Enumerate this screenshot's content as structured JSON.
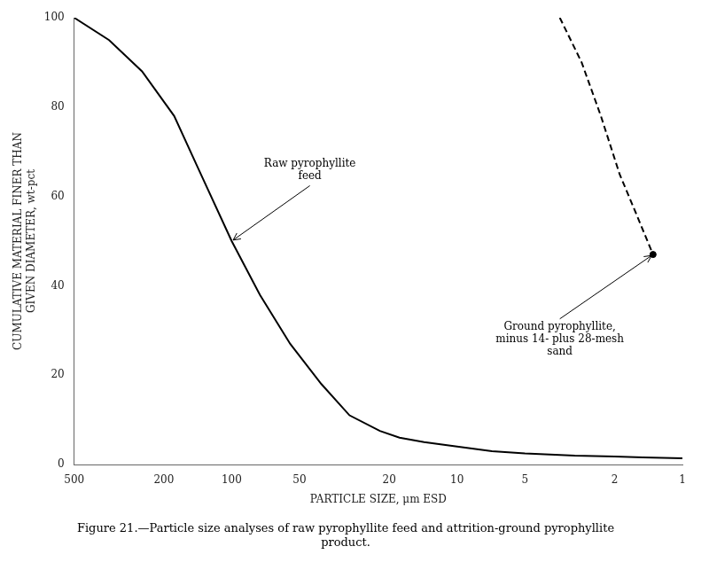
{
  "chart_data": {
    "type": "line",
    "xlabel": "PARTICLE SIZE, μm ESD",
    "ylabel": "CUMULATIVE MATERIAL FINER THAN\nGIVEN DIAMETER, wt-pct",
    "caption": "Figure 21.—Particle size analyses of raw pyrophyllite feed and attrition-ground pyrophyllite\nproduct.",
    "log": "x",
    "grid": false,
    "xlim": [
      500,
      1
    ],
    "xticks": [
      500,
      200,
      100,
      50,
      20,
      10,
      5,
      2,
      1
    ],
    "ylim": [
      0,
      100
    ],
    "yticks": [
      0,
      20,
      40,
      60,
      80,
      100
    ],
    "series": [
      {
        "type": "line",
        "line_style": "solid",
        "color": "#000000",
        "x": [
          500,
          350,
          250,
          180,
          140,
          100,
          75,
          55,
          40,
          30,
          22,
          18,
          14,
          10,
          7,
          5,
          3,
          2,
          1.5,
          1
        ],
        "values": [
          100,
          95,
          88,
          78,
          66,
          50,
          38,
          27,
          18,
          11,
          7.5,
          6,
          5,
          4,
          3,
          2.5,
          2,
          1.8,
          1.6,
          1.4
        ]
      },
      {
        "type": "line",
        "line_style": "dashed",
        "color": "#000000",
        "x": [
          3.5,
          2.8,
          2.3,
          1.9,
          1.6,
          1.35
        ],
        "values": [
          100,
          90,
          78,
          65,
          56,
          47
        ]
      },
      {
        "type": "scatter",
        "marker": "circle",
        "color": "#000000",
        "x": [
          1.35
        ],
        "values": [
          47
        ]
      }
    ],
    "annotations": [
      {
        "text": "Raw pyrophyllite\nfeed",
        "xy": [
          100,
          50
        ],
        "xytext": [
          45,
          63
        ]
      },
      {
        "text": "Ground pyrophyllite,\nminus 14- plus 28-mesh\nsand",
        "xy": [
          1.35,
          47
        ],
        "xytext": [
          3.5,
          32
        ]
      }
    ]
  }
}
